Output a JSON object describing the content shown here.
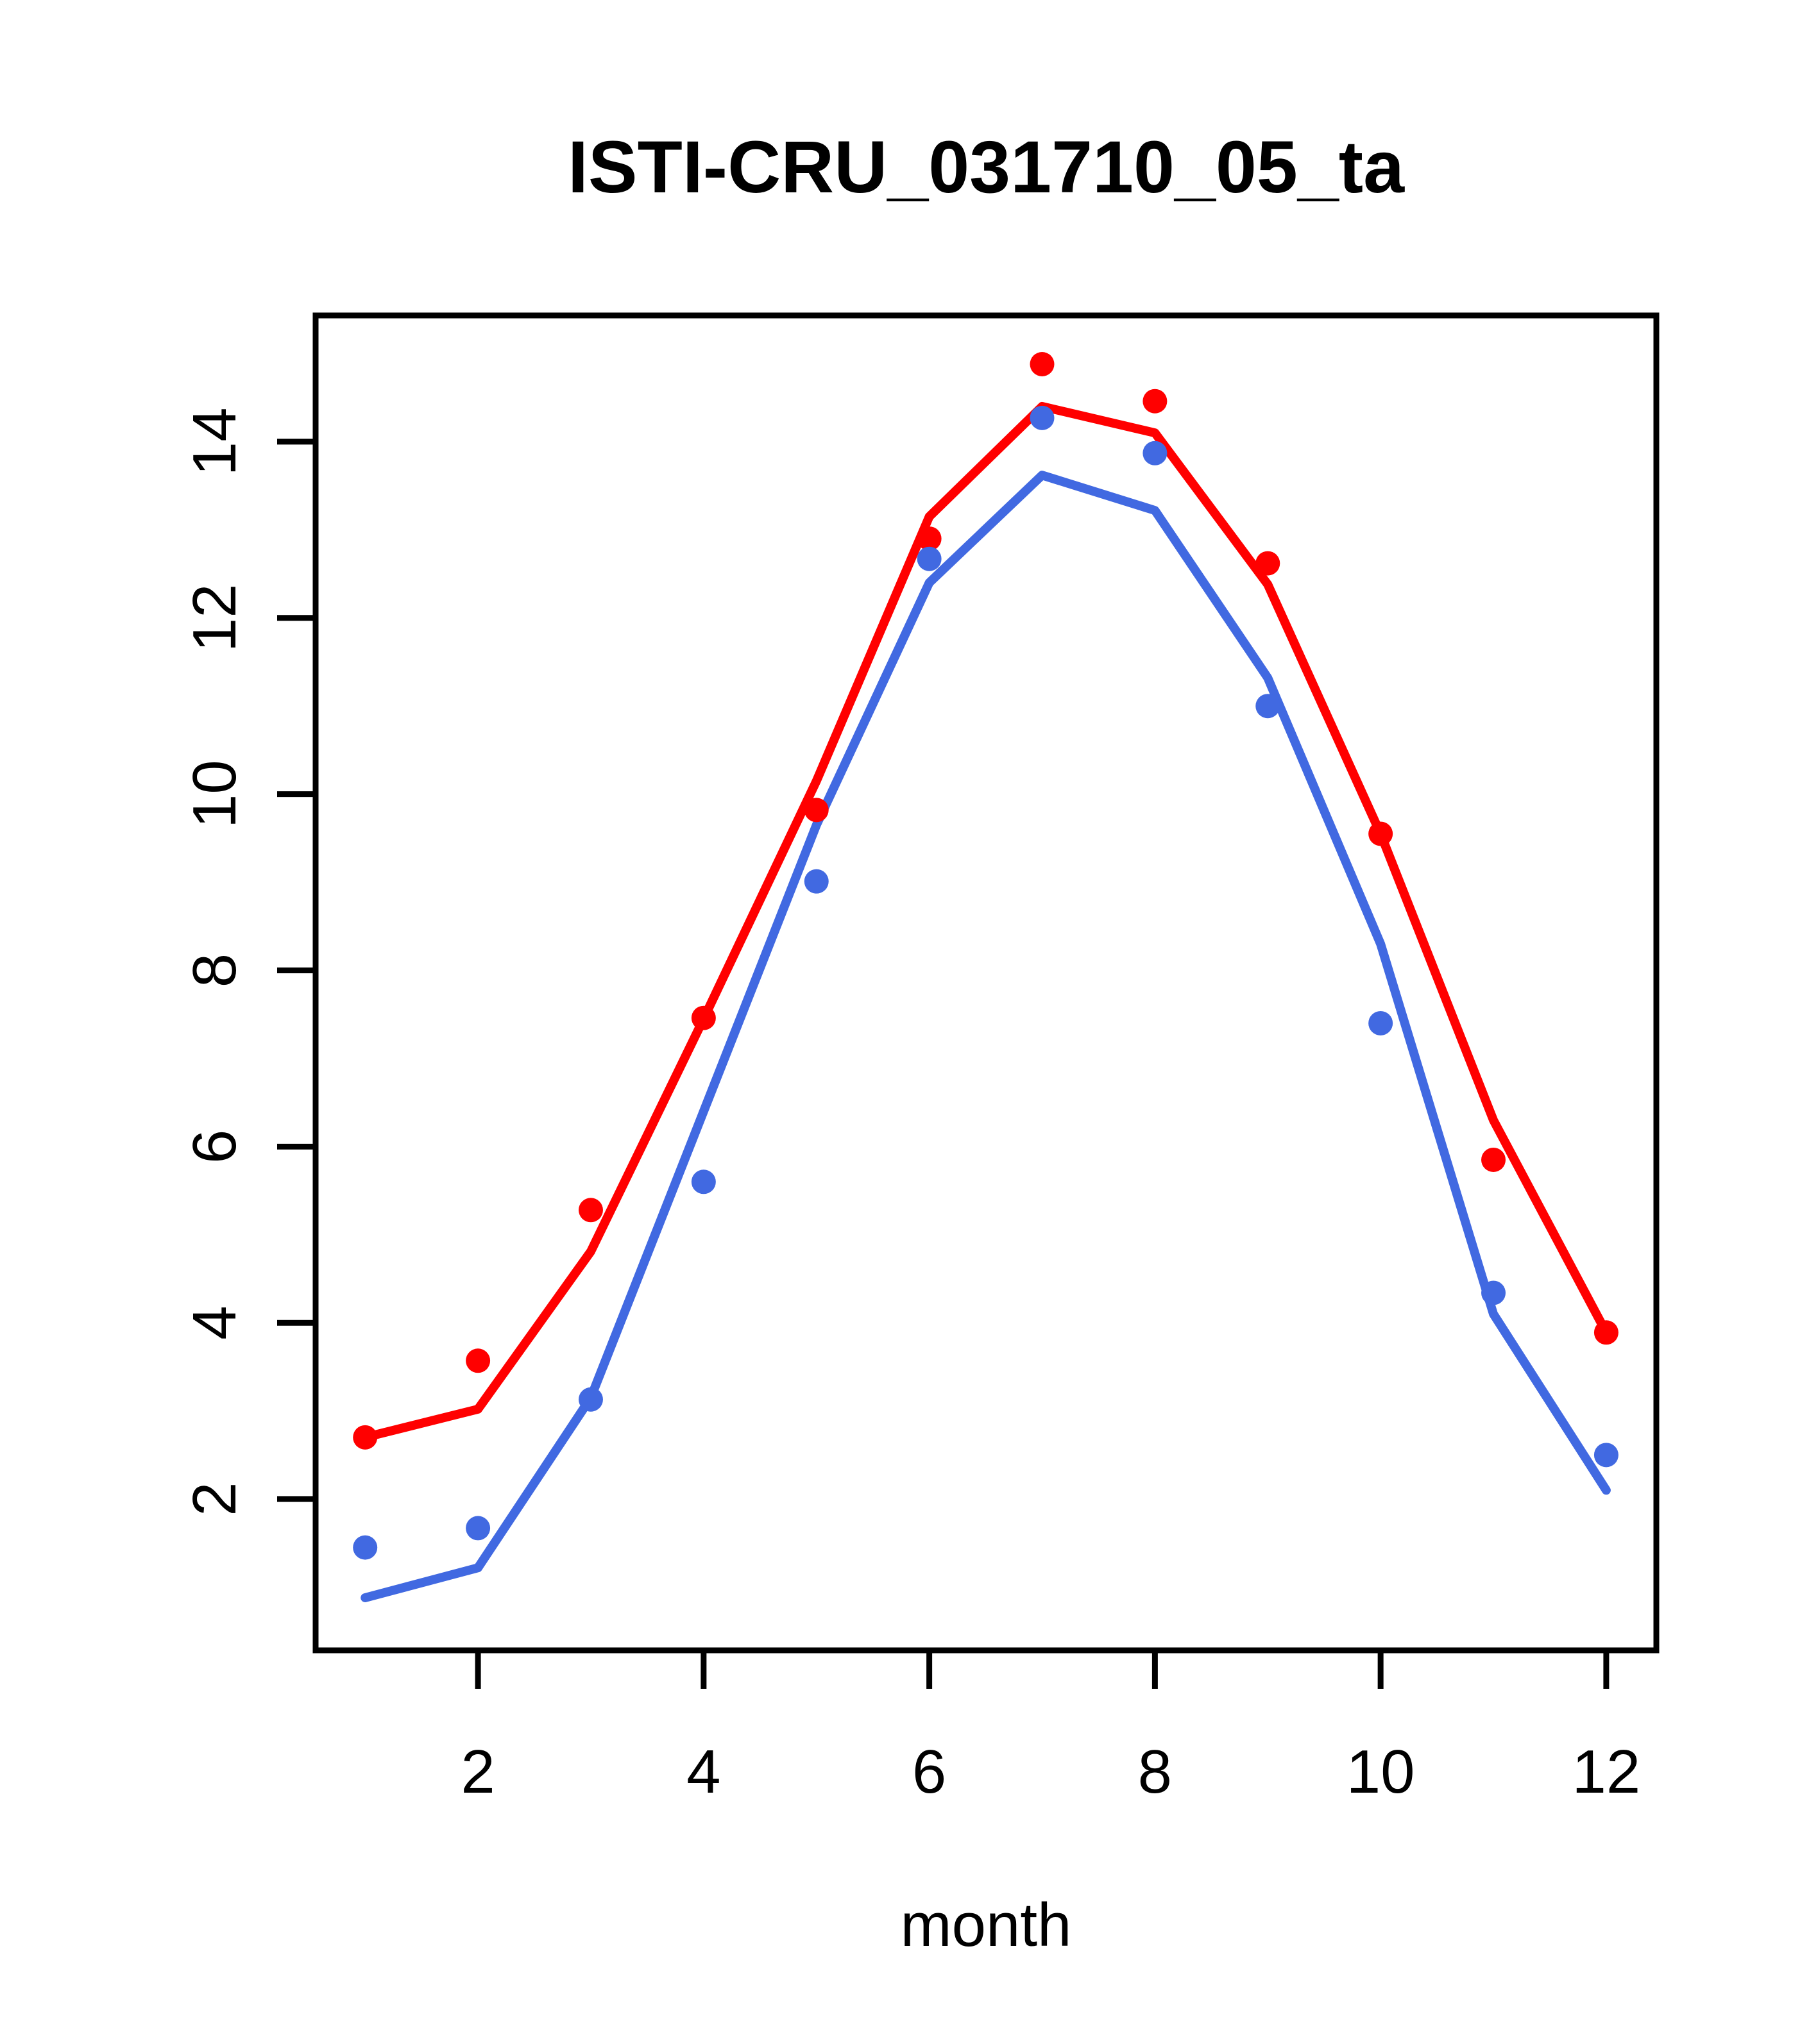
{
  "chart_data": {
    "type": "line",
    "title": "ISTI-CRU_031710_05_ta",
    "xlabel": "month",
    "ylabel": "",
    "x": [
      1,
      2,
      3,
      4,
      5,
      6,
      7,
      8,
      9,
      10,
      11,
      12
    ],
    "x_ticks": [
      2,
      4,
      6,
      8,
      10,
      12
    ],
    "y_ticks": [
      2,
      4,
      6,
      8,
      10,
      12,
      14
    ],
    "xlim": [
      0.561,
      12.444
    ],
    "ylim": [
      0.283,
      15.433
    ],
    "grid": "off",
    "legend": "none",
    "colors": {
      "red": "#ff0000",
      "blue": "#4169e1"
    },
    "series": [
      {
        "name": "red-line",
        "kind": "line",
        "color": "#ff0000",
        "values": [
          2.7,
          3.02,
          4.81,
          7.45,
          10.15,
          13.15,
          14.4,
          14.1,
          12.38,
          9.55,
          6.3,
          3.89
        ]
      },
      {
        "name": "blue-line",
        "kind": "line",
        "color": "#4169e1",
        "values": [
          0.88,
          1.22,
          3.15,
          6.4,
          9.65,
          12.4,
          13.62,
          13.22,
          11.32,
          8.3,
          4.1,
          2.1
        ]
      },
      {
        "name": "red-points",
        "kind": "scatter",
        "color": "#ff0000",
        "values": [
          2.7,
          3.57,
          5.28,
          7.46,
          9.82,
          12.9,
          14.88,
          14.46,
          12.62,
          9.55,
          5.85,
          3.89
        ]
      },
      {
        "name": "blue-points",
        "kind": "scatter",
        "color": "#4169e1",
        "values": [
          1.45,
          1.67,
          3.13,
          5.6,
          9.01,
          12.67,
          14.27,
          13.87,
          11.0,
          7.4,
          4.34,
          2.5
        ]
      }
    ]
  }
}
